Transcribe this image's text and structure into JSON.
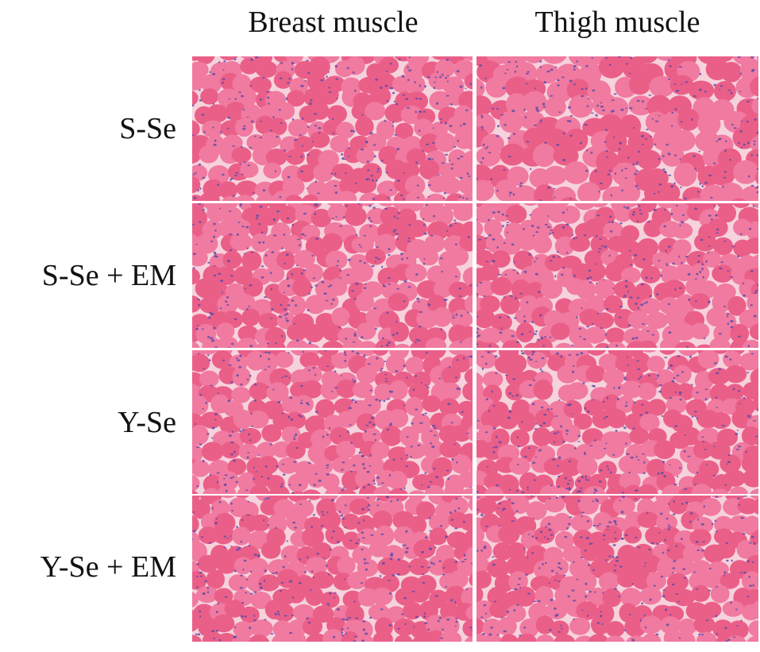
{
  "figure": {
    "columns": [
      {
        "label": "Breast muscle"
      },
      {
        "label": "Thigh muscle"
      }
    ],
    "rows": [
      {
        "label": "S-Se"
      },
      {
        "label": "S-Se + EM"
      },
      {
        "label": "Y-Se"
      },
      {
        "label": "Y-Se + EM"
      }
    ],
    "panel_content": "H&E stained muscle tissue cross-section",
    "colors": {
      "tissue": "#ea5f88",
      "tissue_light": "#f07aa0",
      "gap": "#f6d2dc",
      "nuclei": "#5a4aa8",
      "background": "#ffffff"
    }
  }
}
